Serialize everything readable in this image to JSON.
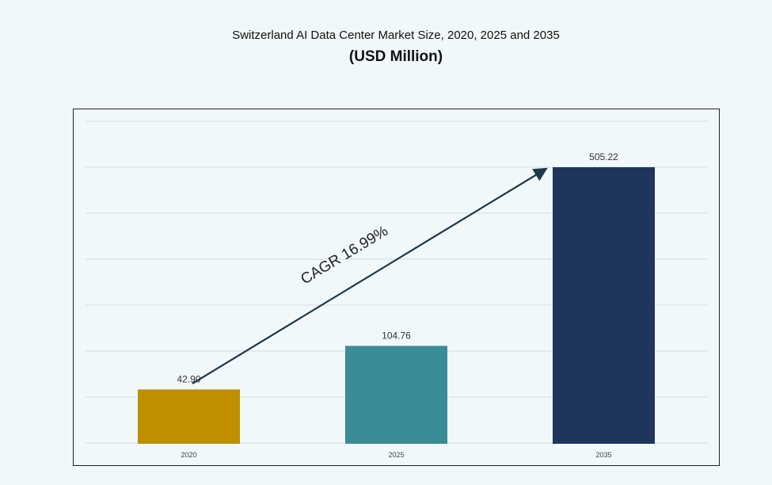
{
  "chart_data": {
    "type": "bar",
    "title": "Switzerland AI Data Center Market Size, 2020, 2025 and 2035",
    "subtitle": "(USD Million)",
    "categories": [
      "2020",
      "2025",
      "2035"
    ],
    "values": [
      42.9,
      104.76,
      505.22
    ],
    "data_labels": [
      "42.90",
      "104.76",
      "505.22"
    ],
    "colors": [
      "#bf8f00",
      "#3a8c96",
      "#1f355e"
    ],
    "annotation": "CAGR 16.99%",
    "grid": true,
    "xlabel": "",
    "ylabel": ""
  }
}
